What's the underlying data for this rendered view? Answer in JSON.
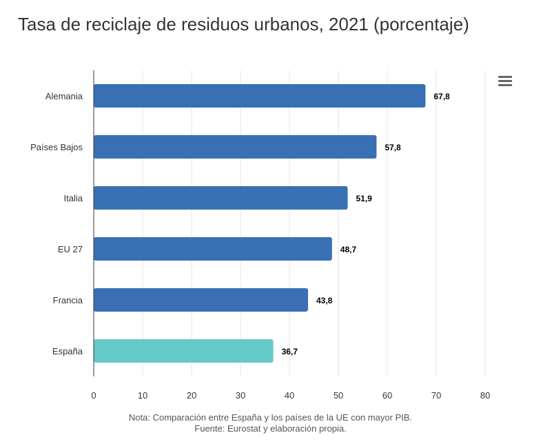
{
  "chart_data": {
    "type": "bar",
    "orientation": "horizontal",
    "title": "Tasa de reciclaje de residuos urbanos, 2021 (porcentaje)",
    "categories": [
      "Alemania",
      "Países Bajos",
      "Italia",
      "EU 27",
      "Francia",
      "España"
    ],
    "values": [
      67.8,
      57.8,
      51.9,
      48.7,
      43.8,
      36.7
    ],
    "data_labels": [
      "67,8",
      "57,8",
      "51,9",
      "48,7",
      "43,8",
      "36,7"
    ],
    "xlim": [
      0,
      80
    ],
    "xticks": [
      0,
      10,
      20,
      30,
      40,
      50,
      60,
      70,
      80
    ],
    "grid": true,
    "colors": {
      "default": "#3970b4",
      "highlight": "#66c9c9"
    },
    "highlight_category": "España",
    "notes": [
      "Nota: Comparación entre España y los países de la UE con mayor PIB.",
      "Fuente: Eurostat y elaboración propia."
    ]
  },
  "menu_icon": "hamburger-menu-icon"
}
